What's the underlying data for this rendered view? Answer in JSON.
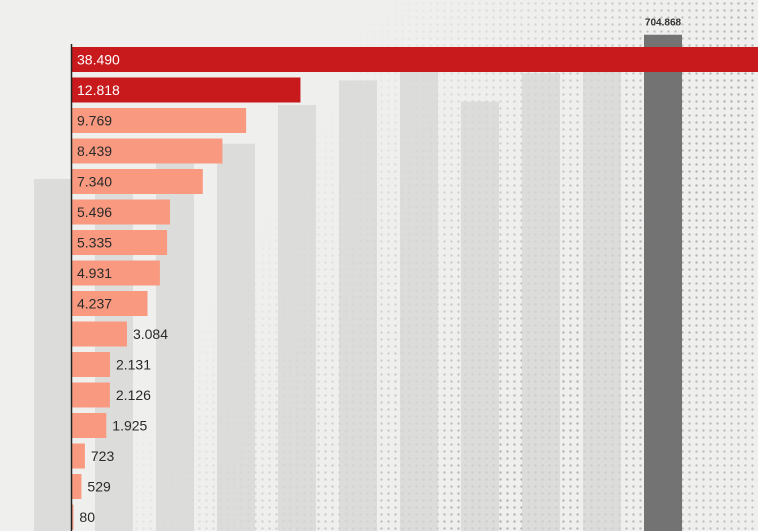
{
  "chart_data": [
    {
      "type": "bar",
      "orientation": "horizontal",
      "values": [
        38490,
        12818,
        9769,
        8439,
        7340,
        5496,
        5335,
        4931,
        4237,
        3084,
        2131,
        2126,
        1925,
        723,
        529,
        80
      ],
      "data_labels": [
        "38.490",
        "12.818",
        "9.769",
        "8.439",
        "7.340",
        "5.496",
        "5.335",
        "4.931",
        "4.237",
        "3.084",
        "2.131",
        "2.126",
        "1.925",
        "723",
        "529",
        "80"
      ],
      "xlim": [
        0,
        38490
      ],
      "colors": {
        "top": "#c8191c",
        "rest": "#f99a80",
        "axis": "#222222"
      }
    },
    {
      "type": "bar",
      "orientation": "vertical",
      "role": "background",
      "values": [
        500,
        500,
        540,
        550,
        605,
        640,
        660,
        610,
        650,
        670,
        704.868
      ],
      "data_labels": [
        "",
        "",
        "",
        "",
        "",
        "",
        "",
        "",
        "",
        "",
        "704.868"
      ],
      "ylim": [
        0,
        740
      ],
      "colors": {
        "faint": "#d6d6d4",
        "highlight": "#737373"
      }
    }
  ]
}
